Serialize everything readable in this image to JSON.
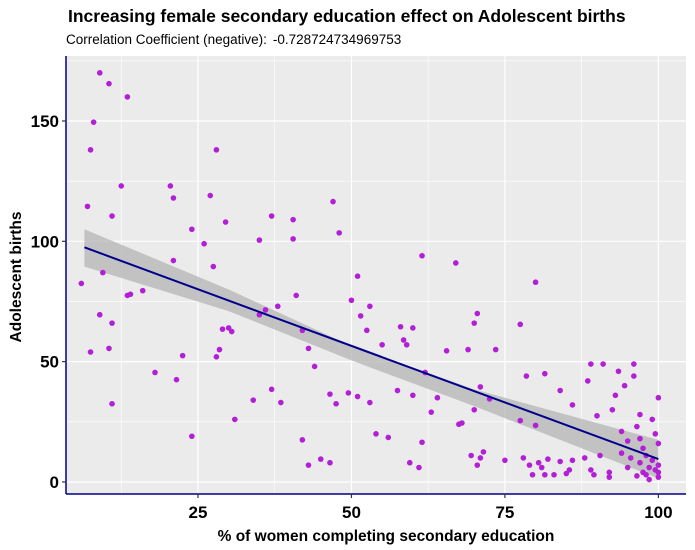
{
  "chart_data": {
    "type": "scatter",
    "title": "Increasing female secondary education effect on Adolescent births",
    "subtitle_label": "Correlation Coefficient (negative):",
    "subtitle_value": "-0.728724734969753",
    "xlabel": "% of women completing secondary education",
    "ylabel": "Adolescent births",
    "xlim": [
      3.5,
      104.5
    ],
    "ylim": [
      -5,
      177
    ],
    "x_ticks": [
      25,
      50,
      75,
      100
    ],
    "y_ticks": [
      0,
      50,
      100,
      150
    ],
    "grid": true,
    "colors": {
      "panel": "#ebebeb",
      "grid": "#ffffff",
      "points": "#b31fd6",
      "trend_line": "#00008b",
      "confidence_band": "#b4b4b4",
      "axis": "#00008b"
    },
    "trend_line": {
      "x": [
        6.5,
        100
      ],
      "y": [
        97.5,
        9.5
      ]
    },
    "confidence_band": [
      {
        "x": 6.5,
        "lo": 89.5,
        "hi": 105
      },
      {
        "x": 30,
        "lo": 71,
        "hi": 80
      },
      {
        "x": 50,
        "lo": 50.5,
        "hi": 56.5
      },
      {
        "x": 70,
        "lo": 31.5,
        "hi": 38.5
      },
      {
        "x": 100,
        "lo": 1.5,
        "hi": 17.5
      }
    ],
    "points": [
      {
        "x": 6,
        "y": 82.5
      },
      {
        "x": 7,
        "y": 114.5
      },
      {
        "x": 7.5,
        "y": 138
      },
      {
        "x": 8,
        "y": 149.5
      },
      {
        "x": 7.5,
        "y": 54
      },
      {
        "x": 9,
        "y": 170
      },
      {
        "x": 9,
        "y": 69.5
      },
      {
        "x": 9.5,
        "y": 87
      },
      {
        "x": 10.5,
        "y": 165.5
      },
      {
        "x": 10.5,
        "y": 55.5
      },
      {
        "x": 11,
        "y": 110.5
      },
      {
        "x": 11,
        "y": 66
      },
      {
        "x": 11,
        "y": 32.5
      },
      {
        "x": 12.5,
        "y": 123
      },
      {
        "x": 13.5,
        "y": 160
      },
      {
        "x": 13.5,
        "y": 77.5
      },
      {
        "x": 14,
        "y": 78
      },
      {
        "x": 16,
        "y": 79.5
      },
      {
        "x": 18,
        "y": 45.5
      },
      {
        "x": 20.5,
        "y": 123
      },
      {
        "x": 21,
        "y": 118
      },
      {
        "x": 21,
        "y": 92
      },
      {
        "x": 21.5,
        "y": 42.5
      },
      {
        "x": 22.5,
        "y": 52.5
      },
      {
        "x": 24,
        "y": 105
      },
      {
        "x": 24,
        "y": 19
      },
      {
        "x": 26,
        "y": 99
      },
      {
        "x": 27,
        "y": 119
      },
      {
        "x": 27.5,
        "y": 89.5
      },
      {
        "x": 28,
        "y": 138
      },
      {
        "x": 28,
        "y": 52
      },
      {
        "x": 28.5,
        "y": 55
      },
      {
        "x": 29,
        "y": 63.5
      },
      {
        "x": 29.5,
        "y": 108
      },
      {
        "x": 30,
        "y": 64
      },
      {
        "x": 30.5,
        "y": 62.5
      },
      {
        "x": 31,
        "y": 26
      },
      {
        "x": 34,
        "y": 34
      },
      {
        "x": 35,
        "y": 100.5
      },
      {
        "x": 35,
        "y": 69.5
      },
      {
        "x": 36,
        "y": 71.5
      },
      {
        "x": 37,
        "y": 110.5
      },
      {
        "x": 37,
        "y": 38.5
      },
      {
        "x": 38,
        "y": 73
      },
      {
        "x": 38.5,
        "y": 33
      },
      {
        "x": 40.5,
        "y": 109
      },
      {
        "x": 40.5,
        "y": 101
      },
      {
        "x": 41,
        "y": 77.5
      },
      {
        "x": 42,
        "y": 63
      },
      {
        "x": 42,
        "y": 17.5
      },
      {
        "x": 43,
        "y": 55.5
      },
      {
        "x": 43,
        "y": 7
      },
      {
        "x": 44,
        "y": 48
      },
      {
        "x": 45,
        "y": 9.5
      },
      {
        "x": 46.5,
        "y": 8
      },
      {
        "x": 46.5,
        "y": 36.5
      },
      {
        "x": 47,
        "y": 116.5
      },
      {
        "x": 47.5,
        "y": 32.5
      },
      {
        "x": 48,
        "y": 103.5
      },
      {
        "x": 49.5,
        "y": 37
      },
      {
        "x": 50,
        "y": 75.5
      },
      {
        "x": 51,
        "y": 85.5
      },
      {
        "x": 51,
        "y": 35.5
      },
      {
        "x": 51.5,
        "y": 69
      },
      {
        "x": 52.5,
        "y": 63
      },
      {
        "x": 53,
        "y": 73
      },
      {
        "x": 53,
        "y": 33
      },
      {
        "x": 54,
        "y": 20
      },
      {
        "x": 55,
        "y": 57
      },
      {
        "x": 56,
        "y": 18.5
      },
      {
        "x": 57.5,
        "y": 38
      },
      {
        "x": 58,
        "y": 64.5
      },
      {
        "x": 58.5,
        "y": 59
      },
      {
        "x": 59,
        "y": 57
      },
      {
        "x": 59.5,
        "y": 8
      },
      {
        "x": 60,
        "y": 64
      },
      {
        "x": 60,
        "y": 36
      },
      {
        "x": 61,
        "y": 6
      },
      {
        "x": 61.5,
        "y": 94
      },
      {
        "x": 61.5,
        "y": 16.5
      },
      {
        "x": 62,
        "y": 45.5
      },
      {
        "x": 63,
        "y": 29
      },
      {
        "x": 64,
        "y": 35
      },
      {
        "x": 65.5,
        "y": 54.5
      },
      {
        "x": 67,
        "y": 91
      },
      {
        "x": 67.5,
        "y": 24
      },
      {
        "x": 68,
        "y": 24.5
      },
      {
        "x": 69,
        "y": 55
      },
      {
        "x": 69.5,
        "y": 11
      },
      {
        "x": 70,
        "y": 66
      },
      {
        "x": 70.5,
        "y": 70
      },
      {
        "x": 70,
        "y": 30
      },
      {
        "x": 70.5,
        "y": 7
      },
      {
        "x": 71,
        "y": 39.5
      },
      {
        "x": 71,
        "y": 10
      },
      {
        "x": 71.5,
        "y": 12.5
      },
      {
        "x": 72.5,
        "y": 34.5
      },
      {
        "x": 73.5,
        "y": 55
      },
      {
        "x": 75,
        "y": 9
      },
      {
        "x": 77.5,
        "y": 65.5
      },
      {
        "x": 77.5,
        "y": 25.5
      },
      {
        "x": 78,
        "y": 10
      },
      {
        "x": 78.5,
        "y": 44
      },
      {
        "x": 79,
        "y": 7
      },
      {
        "x": 79.5,
        "y": 3
      },
      {
        "x": 80,
        "y": 83
      },
      {
        "x": 80,
        "y": 23.5
      },
      {
        "x": 80.5,
        "y": 8
      },
      {
        "x": 81,
        "y": 6
      },
      {
        "x": 81.5,
        "y": 45
      },
      {
        "x": 81.5,
        "y": 3
      },
      {
        "x": 82,
        "y": 9.5
      },
      {
        "x": 83,
        "y": 3
      },
      {
        "x": 84,
        "y": 38
      },
      {
        "x": 84,
        "y": 8.5
      },
      {
        "x": 85,
        "y": 3.5
      },
      {
        "x": 85.5,
        "y": 5
      },
      {
        "x": 86,
        "y": 32
      },
      {
        "x": 86,
        "y": 9
      },
      {
        "x": 88,
        "y": 10
      },
      {
        "x": 88.5,
        "y": 42
      },
      {
        "x": 89,
        "y": 49
      },
      {
        "x": 89,
        "y": 5
      },
      {
        "x": 89.5,
        "y": 3
      },
      {
        "x": 90,
        "y": 27.5
      },
      {
        "x": 90.5,
        "y": 11
      },
      {
        "x": 91,
        "y": 49
      },
      {
        "x": 92,
        "y": 2
      },
      {
        "x": 92,
        "y": 4
      },
      {
        "x": 92.5,
        "y": 30
      },
      {
        "x": 93,
        "y": 36
      },
      {
        "x": 93.5,
        "y": 46
      },
      {
        "x": 94,
        "y": 21
      },
      {
        "x": 94,
        "y": 12
      },
      {
        "x": 94.5,
        "y": 40
      },
      {
        "x": 95,
        "y": 17
      },
      {
        "x": 95,
        "y": 6
      },
      {
        "x": 95.5,
        "y": 10
      },
      {
        "x": 96,
        "y": 49
      },
      {
        "x": 96,
        "y": 44
      },
      {
        "x": 96.5,
        "y": 23
      },
      {
        "x": 96.5,
        "y": 2.5
      },
      {
        "x": 97,
        "y": 28
      },
      {
        "x": 97,
        "y": 18
      },
      {
        "x": 97,
        "y": 8
      },
      {
        "x": 97.5,
        "y": 4
      },
      {
        "x": 97.5,
        "y": 14
      },
      {
        "x": 98,
        "y": 3
      },
      {
        "x": 98,
        "y": 11
      },
      {
        "x": 98.5,
        "y": 1
      },
      {
        "x": 98.5,
        "y": 6
      },
      {
        "x": 99,
        "y": 26
      },
      {
        "x": 99,
        "y": 9
      },
      {
        "x": 99.5,
        "y": 20
      },
      {
        "x": 99.5,
        "y": 5
      },
      {
        "x": 100,
        "y": 35
      },
      {
        "x": 100,
        "y": 16
      },
      {
        "x": 100,
        "y": 7
      },
      {
        "x": 100,
        "y": 4
      },
      {
        "x": 100,
        "y": 2
      }
    ]
  }
}
